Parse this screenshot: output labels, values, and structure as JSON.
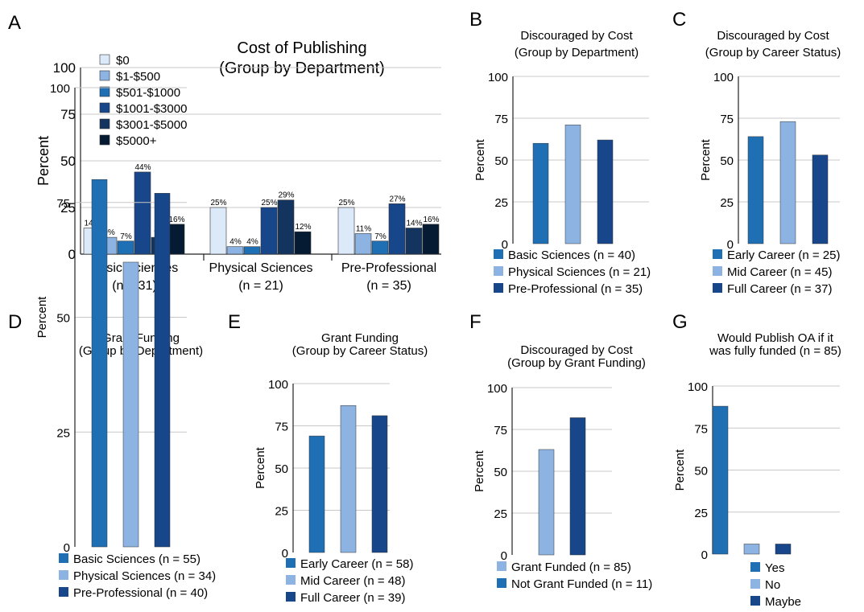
{
  "colors": {
    "c0": "#dbe9f9",
    "c1": "#8db3e2",
    "c2": "#1f6fb5",
    "c3": "#17468a",
    "c4": "#13345f",
    "c5": "#051a33",
    "grid": "#c8c8c8",
    "axis": "#222222"
  },
  "chart_data": [
    {
      "letter": "A",
      "type": "bar",
      "title": [
        "Cost of Publishing",
        "(Group by Department)"
      ],
      "ylabel": "Percent",
      "ylim": [
        0,
        100
      ],
      "yticks": [
        0,
        25,
        50,
        75,
        100
      ],
      "grid": true,
      "legend_position": "top-left",
      "categories": [
        "Basic Sciences",
        "Physical Sciences",
        "Pre-Professional"
      ],
      "category_sublabels": [
        "(n = 31)",
        "(n = 21)",
        "(n = 35)"
      ],
      "series": [
        {
          "name": "$0",
          "color": "c0",
          "values": [
            14,
            25,
            25
          ],
          "labels": [
            "14%",
            "25%",
            "25%"
          ]
        },
        {
          "name": "$1-$500",
          "color": "c1",
          "values": [
            9,
            4,
            11
          ],
          "labels": [
            "9%",
            "4%",
            "11%"
          ]
        },
        {
          "name": "$501-$1000",
          "color": "c2",
          "values": [
            7,
            4,
            7
          ],
          "labels": [
            "7%",
            "4%",
            "7%"
          ]
        },
        {
          "name": "$1001-$3000",
          "color": "c3",
          "values": [
            44,
            25,
            27
          ],
          "labels": [
            "44%",
            "25%",
            "27%"
          ]
        },
        {
          "name": "$3001-$5000",
          "color": "c4",
          "values": [
            9,
            29,
            14
          ],
          "labels": [
            "9%",
            "29%",
            "14%"
          ]
        },
        {
          "name": "$5000+",
          "color": "c5",
          "values": [
            16,
            12,
            16
          ],
          "labels": [
            "16%",
            "12%",
            "16%"
          ]
        }
      ]
    },
    {
      "letter": "B",
      "type": "bar",
      "title": [
        "Discouraged by Cost",
        "(Group by Department)"
      ],
      "ylabel": "Percent",
      "ylim": [
        0,
        100
      ],
      "yticks": [
        0,
        25,
        50,
        75,
        100
      ],
      "grid": true,
      "legend_position": "bottom",
      "categories": [
        "Basic Sciences (n = 40)",
        "Physical Sciences (n = 21)",
        "Pre-Professional (n = 35)"
      ],
      "values": [
        60,
        71,
        62
      ],
      "colors": [
        "c2",
        "c1",
        "c3"
      ]
    },
    {
      "letter": "C",
      "type": "bar",
      "title": [
        "Discouraged by Cost",
        "(Group by Career Status)"
      ],
      "ylabel": "Percent",
      "ylim": [
        0,
        100
      ],
      "yticks": [
        0,
        25,
        50,
        75,
        100
      ],
      "grid": true,
      "legend_position": "bottom",
      "categories": [
        "Early Career (n = 25)",
        "Mid Career (n = 45)",
        "Full Career (n = 37)"
      ],
      "values": [
        64,
        73,
        53
      ],
      "colors": [
        "c2",
        "c1",
        "c3"
      ]
    },
    {
      "letter": "D",
      "type": "bar",
      "title": [
        "Grant Funding",
        "(Group by Department)"
      ],
      "ylabel": "Percent",
      "ylim": [
        0,
        100
      ],
      "yticks": [
        0,
        25,
        50,
        75,
        100
      ],
      "grid": true,
      "legend_position": "bottom",
      "categories": [
        "Basic Sciences (n = 55)",
        "Physical Sciences (n = 34)",
        "Pre-Professional (n = 40)"
      ],
      "values": [
        80,
        62,
        77
      ],
      "colors": [
        "c2",
        "c1",
        "c3"
      ]
    },
    {
      "letter": "E",
      "type": "bar",
      "title": [
        "Grant Funding",
        "(Group by Career Status)"
      ],
      "ylabel": "Percent",
      "ylim": [
        0,
        100
      ],
      "yticks": [
        0,
        25,
        50,
        75,
        100
      ],
      "grid": true,
      "legend_position": "bottom",
      "categories": [
        "Early Career (n = 58)",
        "Mid Career (n = 48)",
        "Full Career (n = 39)"
      ],
      "values": [
        69,
        87,
        81
      ],
      "colors": [
        "c2",
        "c1",
        "c3"
      ]
    },
    {
      "letter": "F",
      "type": "bar",
      "title": [
        "Discouraged by Cost",
        "(Group by Grant Funding)"
      ],
      "ylabel": "Percent",
      "ylim": [
        0,
        100
      ],
      "yticks": [
        0,
        25,
        50,
        75,
        100
      ],
      "grid": true,
      "legend_position": "bottom",
      "categories": [
        "Grant Funded (n = 85)",
        "Not Grant Funded (n = 11)"
      ],
      "values": [
        63,
        82
      ],
      "colors": [
        "c1",
        "c3"
      ],
      "legend_colors": [
        "c1",
        "c2"
      ]
    },
    {
      "letter": "G",
      "type": "bar",
      "title": [
        "Would Publish OA if it",
        "was fully funded (n = 85)"
      ],
      "ylabel": "Percent",
      "ylim": [
        0,
        100
      ],
      "yticks": [
        0,
        25,
        50,
        75,
        100
      ],
      "grid": true,
      "legend_position": "bottom",
      "categories": [
        "Yes",
        "No",
        "Maybe"
      ],
      "values": [
        88,
        6,
        6
      ],
      "colors": [
        "c2",
        "c1",
        "c3"
      ]
    }
  ]
}
